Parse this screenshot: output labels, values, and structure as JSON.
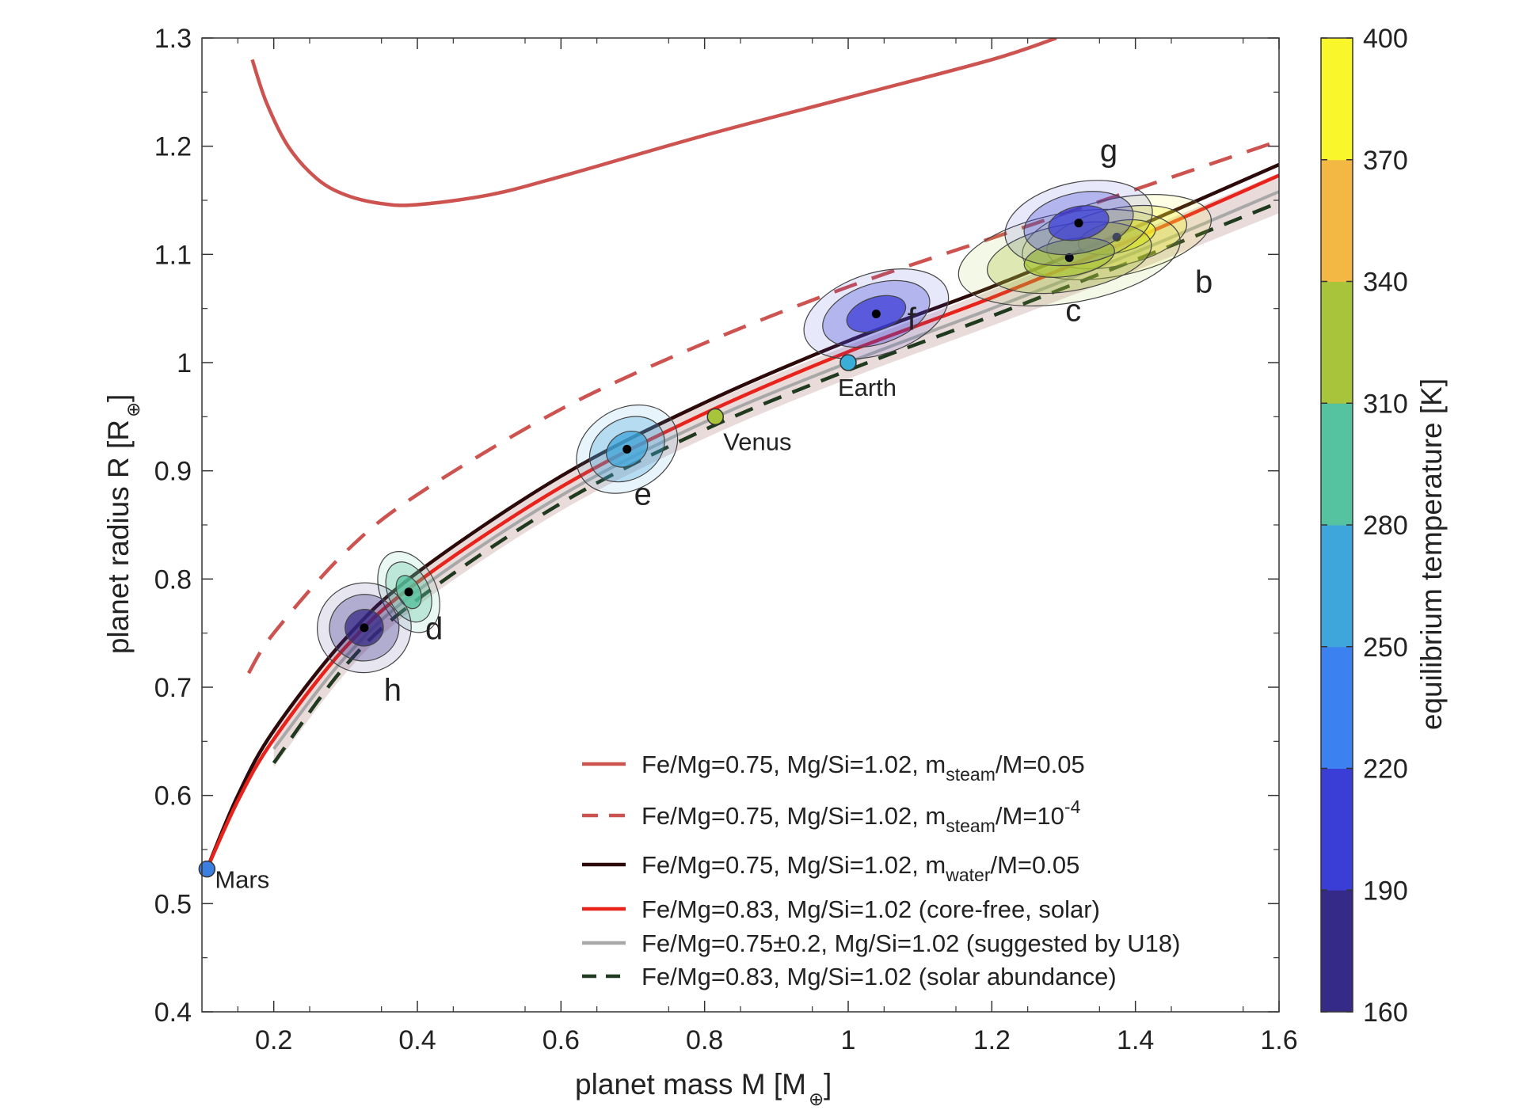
{
  "chart_data": {
    "type": "scatter",
    "title": "",
    "xlabel": {
      "main": "planet mass M [M",
      "sub": "⊕",
      "tail": "]"
    },
    "ylabel": {
      "main": "planet radius R [R",
      "sub": "⊕",
      "tail": "]"
    },
    "xlim": [
      0.1,
      1.6
    ],
    "ylim": [
      0.4,
      1.3
    ],
    "xticks": [
      {
        "v": 0.2,
        "label": "0.2"
      },
      {
        "v": 0.4,
        "label": "0.4"
      },
      {
        "v": 0.6,
        "label": "0.6"
      },
      {
        "v": 0.8,
        "label": "0.8"
      },
      {
        "v": 1.0,
        "label": "1"
      },
      {
        "v": 1.2,
        "label": "1.2"
      },
      {
        "v": 1.4,
        "label": "1.4"
      },
      {
        "v": 1.6,
        "label": "1.6"
      }
    ],
    "yticks": [
      {
        "v": 0.4,
        "label": "0.4"
      },
      {
        "v": 0.5,
        "label": "0.5"
      },
      {
        "v": 0.6,
        "label": "0.6"
      },
      {
        "v": 0.7,
        "label": "0.7"
      },
      {
        "v": 0.8,
        "label": "0.8"
      },
      {
        "v": 0.9,
        "label": "0.9"
      },
      {
        "v": 1.0,
        "label": "1"
      },
      {
        "v": 1.1,
        "label": "1.1"
      },
      {
        "v": 1.2,
        "label": "1.2"
      },
      {
        "v": 1.3,
        "label": "1.3"
      }
    ],
    "planets": [
      {
        "name": "b",
        "mass": 1.374,
        "radius": 1.116,
        "temp": 398
      },
      {
        "name": "c",
        "mass": 1.308,
        "radius": 1.097,
        "temp": 339
      },
      {
        "name": "d",
        "mass": 0.388,
        "radius": 0.788,
        "temp": 288
      },
      {
        "name": "e",
        "mass": 0.692,
        "radius": 0.92,
        "temp": 251
      },
      {
        "name": "f",
        "mass": 1.039,
        "radius": 1.045,
        "temp": 219
      },
      {
        "name": "g",
        "mass": 1.321,
        "radius": 1.129,
        "temp": 198
      },
      {
        "name": "h",
        "mass": 0.326,
        "radius": 0.755,
        "temp": 173
      }
    ],
    "reference_planets": [
      {
        "name": "Mars",
        "mass": 0.107,
        "radius": 0.532,
        "color": "#3d7fe0"
      },
      {
        "name": "Venus",
        "mass": 0.815,
        "radius": 0.95,
        "color": "#a8c43a"
      },
      {
        "name": "Earth",
        "mass": 1.0,
        "radius": 1.0,
        "color": "#3aaed8"
      }
    ],
    "series": [
      {
        "id": "steam05",
        "name": "Fe/Mg=0.75, Mg/Si=1.02, m",
        "sub": "steam",
        "tail": "/M=0.05",
        "sup": "",
        "color": "#cc5350",
        "dash": "",
        "x": [
          0.17,
          0.19,
          0.22,
          0.26,
          0.3,
          0.35,
          0.4,
          0.5,
          0.6,
          0.8,
          1.0,
          1.2,
          1.29
        ],
        "y": [
          1.28,
          1.24,
          1.2,
          1.17,
          1.155,
          1.147,
          1.146,
          1.155,
          1.172,
          1.21,
          1.245,
          1.28,
          1.3
        ]
      },
      {
        "id": "steam1e4",
        "name": "Fe/Mg=0.75, Mg/Si=1.02, m",
        "sub": "steam",
        "tail": "/M=10",
        "sup": "-4",
        "color": "#cc5350",
        "dash": "30,20",
        "x": [
          0.165,
          0.2,
          0.3,
          0.4,
          0.6,
          0.8,
          1.0,
          1.2,
          1.4,
          1.6
        ],
        "y": [
          0.713,
          0.75,
          0.825,
          0.878,
          0.957,
          1.018,
          1.07,
          1.115,
          1.16,
          1.205
        ]
      },
      {
        "id": "water05",
        "name": "Fe/Mg=0.75, Mg/Si=1.02, m",
        "sub": "water",
        "tail": "/M=0.05",
        "sup": "",
        "color": "#2d0a0a",
        "dash": "",
        "x": [
          0.107,
          0.15,
          0.2,
          0.3,
          0.4,
          0.6,
          0.8,
          1.0,
          1.2,
          1.4,
          1.6
        ],
        "y": [
          0.532,
          0.6,
          0.66,
          0.745,
          0.806,
          0.895,
          0.963,
          1.02,
          1.07,
          1.125,
          1.183
        ]
      },
      {
        "id": "corefree",
        "name": "Fe/Mg=0.83, Mg/Si=1.02 (core-free, solar)",
        "sub": "",
        "tail": "",
        "sup": "",
        "color": "#e8231c",
        "dash": "",
        "x": [
          0.107,
          0.15,
          0.2,
          0.3,
          0.4,
          0.6,
          0.8,
          1.0,
          1.2,
          1.4,
          1.6
        ],
        "y": [
          0.532,
          0.595,
          0.652,
          0.737,
          0.797,
          0.885,
          0.953,
          1.01,
          1.06,
          1.115,
          1.173
        ]
      },
      {
        "id": "u18",
        "name": "Fe/Mg=0.75±0.2, Mg/Si=1.02 (suggested by U18)",
        "sub": "",
        "tail": "",
        "sup": "",
        "color": "#a8a8a8",
        "dash": "",
        "x": [
          0.2,
          0.3,
          0.4,
          0.6,
          0.8,
          1.0,
          1.2,
          1.4,
          1.6
        ],
        "y": [
          0.643,
          0.728,
          0.789,
          0.877,
          0.945,
          1.0,
          1.05,
          1.102,
          1.158
        ]
      },
      {
        "id": "solar",
        "name": "Fe/Mg=0.83, Mg/Si=1.02 (solar abundance)",
        "sub": "",
        "tail": "",
        "sup": "",
        "color": "#1f3a1f",
        "dash": "24,15",
        "x": [
          0.2,
          0.3,
          0.4,
          0.6,
          0.8,
          1.0,
          1.2,
          1.4,
          1.6
        ],
        "y": [
          0.63,
          0.72,
          0.781,
          0.87,
          0.938,
          0.993,
          1.043,
          1.095,
          1.148
        ]
      }
    ],
    "band": {
      "x": [
        0.2,
        0.3,
        0.4,
        0.6,
        0.8,
        1.0,
        1.2,
        1.4,
        1.6
      ],
      "upper": [
        0.662,
        0.745,
        0.806,
        0.893,
        0.961,
        1.016,
        1.067,
        1.12,
        1.175
      ],
      "lower": [
        0.626,
        0.713,
        0.775,
        0.863,
        0.93,
        0.985,
        1.034,
        1.085,
        1.138
      ]
    },
    "colorbar": {
      "label": "equilibrium temperature [K]",
      "range": [
        160,
        400
      ],
      "ticks": [
        160,
        190,
        220,
        250,
        280,
        310,
        340,
        370,
        400
      ],
      "colors": [
        "#352a87",
        "#3b3ed6",
        "#3b82f0",
        "#3fa6db",
        "#55c39f",
        "#a8c43a",
        "#f3b744",
        "#f9f62b"
      ]
    }
  }
}
